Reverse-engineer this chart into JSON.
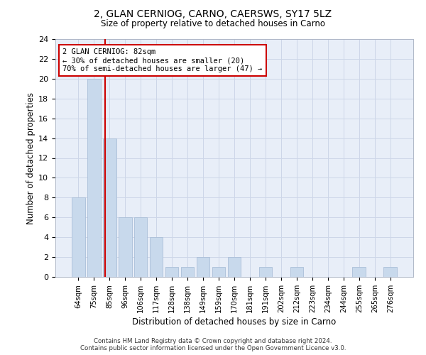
{
  "title": "2, GLAN CERNIOG, CARNO, CAERSWS, SY17 5LZ",
  "subtitle": "Size of property relative to detached houses in Carno",
  "xlabel": "Distribution of detached houses by size in Carno",
  "ylabel": "Number of detached properties",
  "bar_categories": [
    "64sqm",
    "75sqm",
    "85sqm",
    "96sqm",
    "106sqm",
    "117sqm",
    "128sqm",
    "138sqm",
    "149sqm",
    "159sqm",
    "170sqm",
    "181sqm",
    "191sqm",
    "202sqm",
    "212sqm",
    "223sqm",
    "234sqm",
    "244sqm",
    "255sqm",
    "265sqm",
    "276sqm"
  ],
  "bar_values": [
    8,
    20,
    14,
    6,
    6,
    4,
    1,
    1,
    2,
    1,
    2,
    0,
    1,
    0,
    1,
    0,
    0,
    0,
    1,
    0,
    1
  ],
  "bar_color": "#c8d9ec",
  "bar_edgecolor": "#aabfd8",
  "ylim": [
    0,
    24
  ],
  "yticks": [
    0,
    2,
    4,
    6,
    8,
    10,
    12,
    14,
    16,
    18,
    20,
    22,
    24
  ],
  "property_label": "2 GLAN CERNIOG: 82sqm",
  "annotation_line1": "← 30% of detached houses are smaller (20)",
  "annotation_line2": "70% of semi-detached houses are larger (47) →",
  "vline_color": "#cc0000",
  "annotation_box_color": "#cc0000",
  "grid_color": "#cdd6e8",
  "background_color": "#e8eef8",
  "footer_line1": "Contains HM Land Registry data © Crown copyright and database right 2024.",
  "footer_line2": "Contains public sector information licensed under the Open Government Licence v3.0.",
  "vline_x_index": 1.72
}
